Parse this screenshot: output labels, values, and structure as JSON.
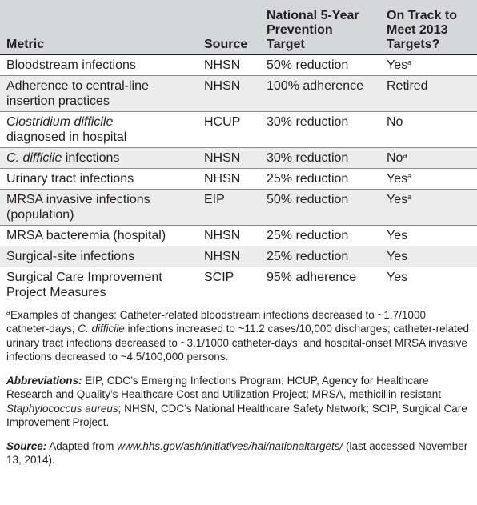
{
  "headers": {
    "metric": "Metric",
    "source": "Source",
    "target_line1": "National 5-Year",
    "target_line2": "Prevention",
    "target_line3": "Target",
    "track_line1": "On Track to",
    "track_line2": "Meet 2013",
    "track_line3": "Targets?"
  },
  "rows": [
    {
      "metric": "Bloodstream infections",
      "source": "NHSN",
      "target": "50% reduction",
      "status": "Yes",
      "sup": "a"
    },
    {
      "metric_line1": "Adherence to central-line",
      "metric_line2": "insertion practices",
      "source": "NHSN",
      "target": "100% adherence",
      "status": "Retired"
    },
    {
      "metric_line1": "Clostridium difficile",
      "metric_line2": "diagnosed in hospital",
      "source": "HCUP",
      "target": "30% reduction",
      "status": "No"
    },
    {
      "metric_italic": "C. difficile",
      "metric_rest": " infections",
      "source": "NHSN",
      "target": "30% reduction",
      "status": "No",
      "sup": "a"
    },
    {
      "metric": "Urinary tract infections",
      "source": "NHSN",
      "target": "25% reduction",
      "status": "Yes",
      "sup": "a"
    },
    {
      "metric_line1": "MRSA invasive infections",
      "metric_line2": "(population)",
      "source": "EIP",
      "target": "50% reduction",
      "status": "Yes",
      "sup": "a"
    },
    {
      "metric": "MRSA bacteremia (hospital)",
      "source": "NHSN",
      "target": "25% reduction",
      "status": "Yes"
    },
    {
      "metric": "Surgical-site infections",
      "source": "NHSN",
      "target": "25% reduction",
      "status": "Yes"
    },
    {
      "metric_line1": "Surgical Care Improvement",
      "metric_line2": "Project Measures",
      "source": "SCIP",
      "target": "95% adherence",
      "status": "Yes"
    }
  ],
  "footnote": {
    "marker": "a",
    "p1": "Examples of changes: Catheter-related bloodstream infections decreased to ~1.7/1000 catheter-days; ",
    "p2_italic": "C. difficile",
    "p3": " infections increased to ~11.2 cases/10,000 discharges; catheter-related urinary tract infections decreased to ~3.1/1000 catheter-days; and hospital-onset MRSA invasive infections decreased to ~4.5/100,000 persons."
  },
  "abbreviations": {
    "label": "Abbreviations:",
    "p1": " EIP, CDC’s Emerging Infections Program; HCUP, Agency for Healthcare Research and Quality’s Healthcare Cost and Utilization Project; MRSA, methicillin-resistant ",
    "p2_italic": "Staphylococcus aureus",
    "p3": "; NHSN, CDC’s National Healthcare Safety Network; SCIP, Surgical Care Improvement Project."
  },
  "source_note": {
    "label": "Source:",
    "p1": " Adapted from ",
    "url": "www.hhs.gov/ash/initiatives/hai/nationaltargets/",
    "p2": " (last accessed November 13, 2014)."
  }
}
